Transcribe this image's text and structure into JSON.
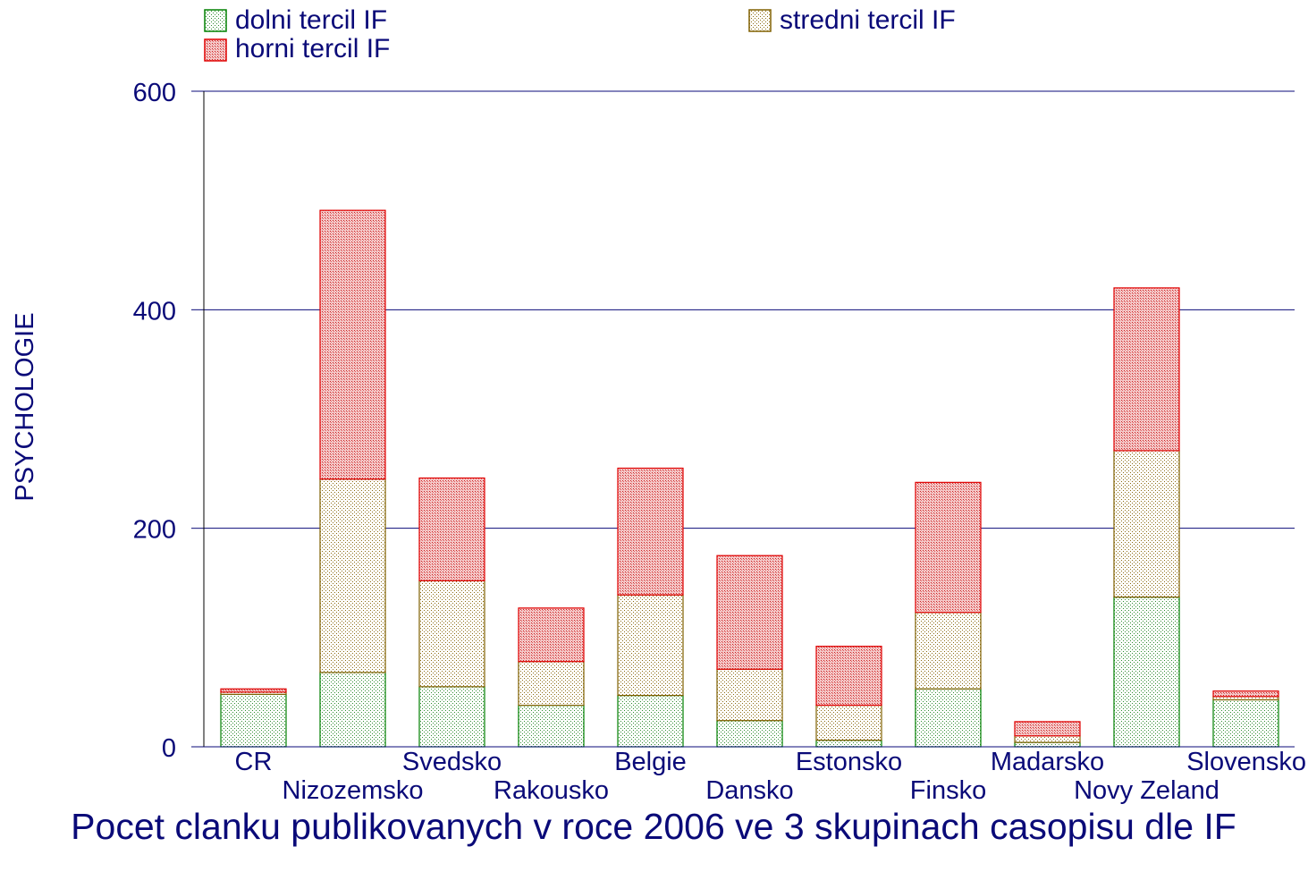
{
  "chart_data": {
    "type": "bar",
    "stacked": true,
    "title": "Pocet clanku publikovanych v roce 2006 ve 3 skupinach casopisu dle IF",
    "xlabel": "",
    "ylabel": "PSYCHOLOGIE",
    "ylim": [
      0,
      600
    ],
    "yticks": [
      0,
      200,
      400,
      600
    ],
    "grid": true,
    "legend_position": "top",
    "categories": [
      "CR",
      "Nizozemsko",
      "Svedsko",
      "Rakousko",
      "Belgie",
      "Dansko",
      "Estonsko",
      "Finsko",
      "Madarsko",
      "Novy Zeland",
      "Slovensko"
    ],
    "series": [
      {
        "name": "dolni tercil IF",
        "color": "#008000",
        "pattern": "dots-green",
        "values": [
          48,
          68,
          55,
          38,
          47,
          24,
          6,
          53,
          4,
          137,
          43
        ]
      },
      {
        "name": "stredni tercil IF",
        "color": "#806000",
        "pattern": "dots-brown",
        "values": [
          2,
          177,
          97,
          40,
          92,
          47,
          32,
          70,
          6,
          134,
          3
        ]
      },
      {
        "name": "horni tercil IF",
        "color": "#e00000",
        "pattern": "cross-red",
        "values": [
          3,
          246,
          94,
          49,
          116,
          104,
          54,
          119,
          13,
          149,
          5
        ]
      }
    ]
  }
}
